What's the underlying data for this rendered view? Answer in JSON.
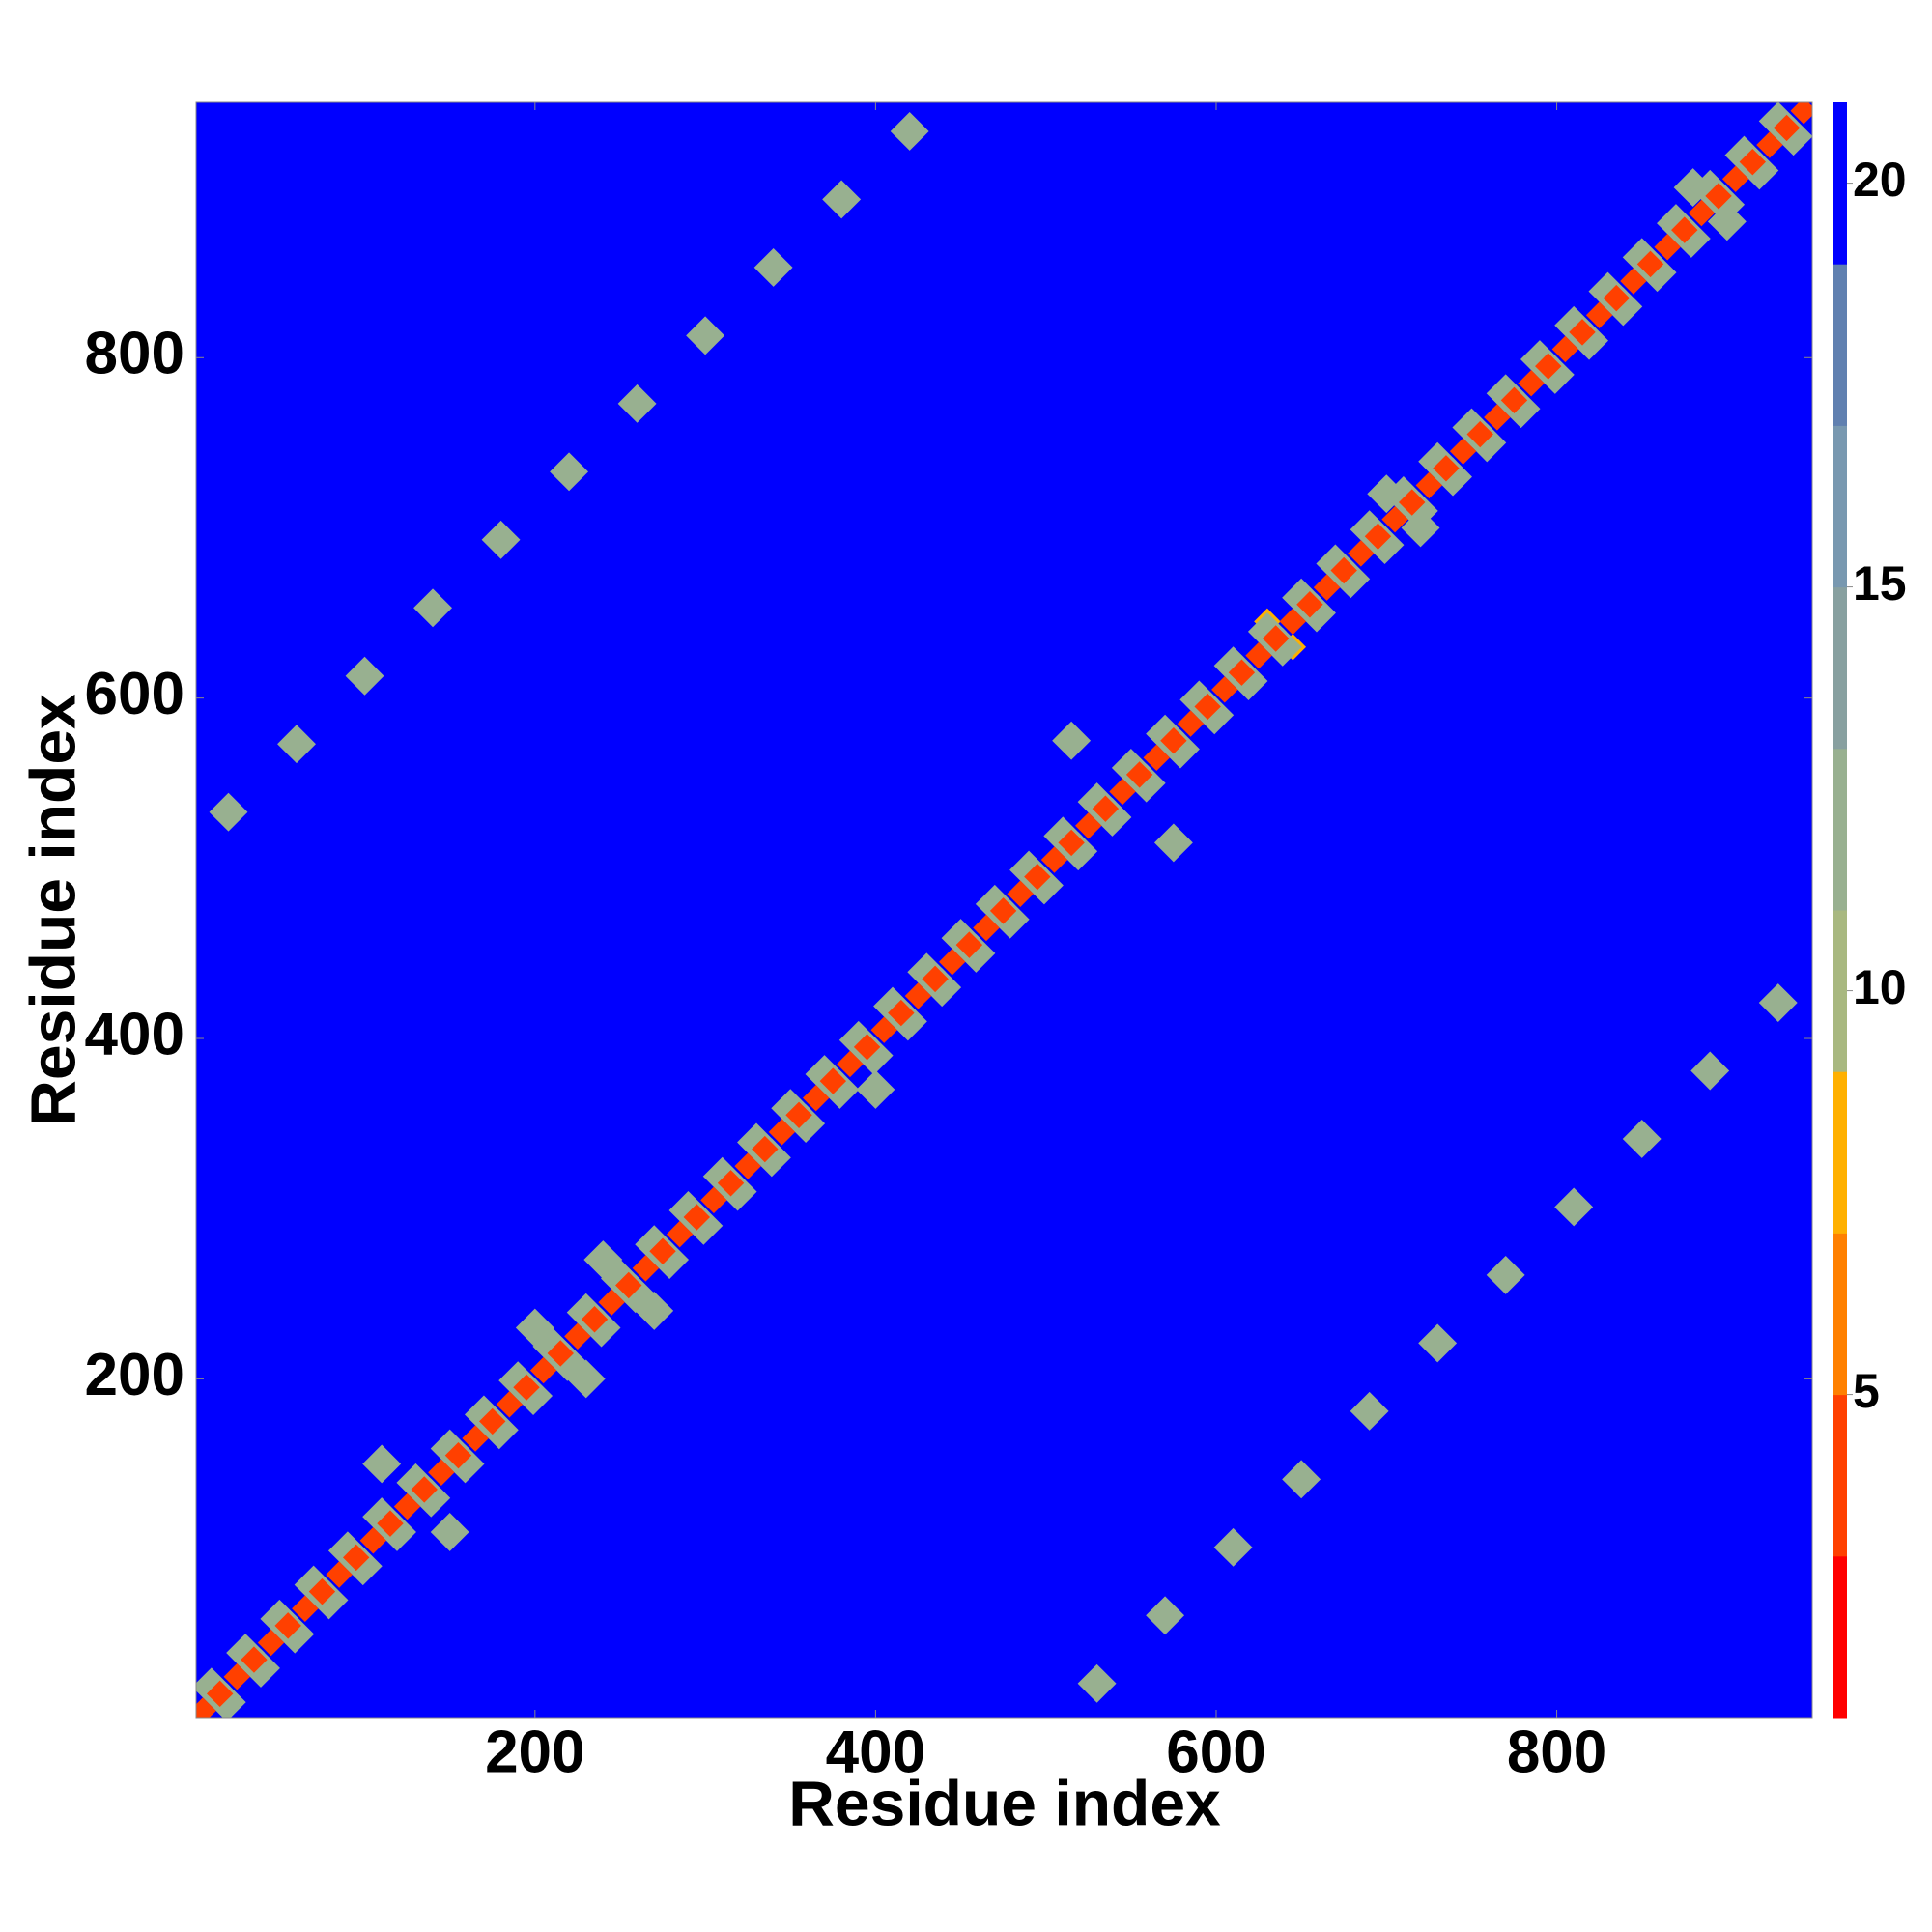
{
  "chart_data": {
    "type": "heatmap",
    "x_label": "Residue index",
    "y_label": "Residue index",
    "xlim": [
      1,
      950
    ],
    "ylim": [
      1,
      950
    ],
    "xticks": [
      200,
      400,
      600,
      800
    ],
    "yticks": [
      200,
      400,
      600,
      800
    ],
    "clim": [
      1,
      21
    ],
    "cticks": [
      5,
      10,
      15,
      20
    ],
    "colors": [
      "#ff0000",
      "#ff4000",
      "#ff8000",
      "#ffb000",
      "#a8b880",
      "#98b090",
      "#88a0a0",
      "#7898b0",
      "#6080b0",
      "#0000ff"
    ],
    "background": 21,
    "x": [
      20,
      60,
      100,
      140,
      180,
      220,
      260,
      300,
      340,
      380,
      420,
      530,
      570,
      610,
      650,
      690,
      730,
      770,
      810,
      850,
      890,
      930,
      240,
      270,
      200,
      230,
      700,
      720,
      515,
      575,
      110,
      150,
      630,
      645,
      880,
      900,
      400,
      10,
      30,
      50,
      70,
      90,
      110,
      130,
      150,
      170,
      190,
      210,
      230,
      250,
      270,
      290,
      310,
      330,
      350,
      370,
      390,
      410,
      430,
      450,
      470,
      490,
      510,
      530,
      550,
      570,
      590,
      610,
      630,
      650,
      670,
      690,
      710,
      730,
      750,
      770,
      790,
      810,
      830,
      850,
      870,
      890,
      910,
      930,
      19,
      39,
      59,
      79,
      99,
      119,
      139,
      159,
      179,
      199,
      219,
      239,
      259,
      279,
      299,
      319,
      339,
      359,
      379,
      399,
      419,
      439,
      459,
      479,
      499,
      519,
      539,
      559,
      579,
      599,
      619,
      639,
      659,
      679,
      699,
      719,
      739,
      759,
      779,
      799,
      819,
      839,
      859,
      879,
      899,
      919,
      939,
      5,
      15,
      25,
      35,
      45,
      55,
      65,
      75,
      85,
      95,
      105,
      115,
      125,
      135,
      145,
      155,
      165,
      175,
      185,
      195,
      205,
      215,
      225,
      235,
      245,
      255,
      265,
      275,
      285,
      295,
      305,
      315,
      325,
      335,
      345,
      355,
      365,
      375,
      385,
      395,
      405,
      415,
      425,
      435,
      445,
      455,
      465,
      475,
      485,
      495,
      505,
      515,
      525,
      535,
      545,
      555,
      565,
      575,
      585,
      595,
      605,
      615,
      625,
      635,
      645,
      655,
      665,
      675,
      685,
      695,
      705,
      715,
      725,
      735,
      745,
      755,
      765,
      775,
      785,
      795,
      805,
      815,
      825,
      835,
      845,
      855,
      865,
      875,
      885,
      895,
      905,
      915,
      925,
      935,
      945
    ],
    "y": [
      533,
      573,
      613,
      653,
      693,
      733,
      773,
      813,
      853,
      893,
      933,
      21,
      61,
      101,
      141,
      181,
      221,
      261,
      301,
      341,
      381,
      421,
      270,
      240,
      230,
      200,
      720,
      700,
      575,
      515,
      150,
      110,
      645,
      630,
      900,
      880,
      370,
      19,
      39,
      59,
      79,
      99,
      119,
      139,
      159,
      179,
      199,
      219,
      239,
      259,
      279,
      299,
      319,
      339,
      359,
      379,
      399,
      419,
      439,
      459,
      479,
      499,
      519,
      539,
      559,
      579,
      599,
      619,
      639,
      659,
      679,
      699,
      719,
      739,
      759,
      779,
      799,
      819,
      839,
      859,
      879,
      899,
      919,
      939,
      10,
      30,
      50,
      70,
      90,
      110,
      130,
      150,
      170,
      190,
      210,
      230,
      250,
      270,
      290,
      310,
      330,
      350,
      370,
      390,
      410,
      430,
      450,
      470,
      490,
      510,
      530,
      550,
      570,
      590,
      610,
      630,
      650,
      670,
      690,
      710,
      730,
      750,
      770,
      790,
      810,
      830,
      850,
      870,
      890,
      910,
      930,
      5,
      15,
      25,
      35,
      45,
      55,
      65,
      75,
      85,
      95,
      105,
      115,
      125,
      135,
      145,
      155,
      165,
      175,
      185,
      195,
      205,
      215,
      225,
      235,
      245,
      255,
      265,
      275,
      285,
      295,
      305,
      315,
      325,
      335,
      345,
      355,
      365,
      375,
      385,
      395,
      405,
      415,
      425,
      435,
      445,
      455,
      465,
      475,
      485,
      495,
      505,
      515,
      525,
      535,
      545,
      555,
      565,
      575,
      585,
      595,
      605,
      615,
      625,
      635,
      645,
      655,
      665,
      675,
      685,
      695,
      705,
      715,
      725,
      735,
      745,
      755,
      765,
      775,
      785,
      795,
      805,
      815,
      825,
      835,
      845,
      855,
      865,
      875,
      885,
      895,
      905,
      915,
      925,
      935,
      945
    ],
    "values": [
      12,
      12,
      12,
      12,
      12,
      12,
      12,
      12,
      12,
      12,
      12,
      12,
      12,
      12,
      12,
      12,
      12,
      12,
      12,
      12,
      12,
      12,
      12,
      12,
      12,
      12,
      12,
      12,
      12,
      12,
      12,
      12,
      7,
      7,
      12,
      12,
      12,
      12,
      12,
      12,
      12,
      12,
      12,
      12,
      12,
      12,
      12,
      12,
      12,
      12,
      12,
      12,
      12,
      12,
      12,
      12,
      12,
      12,
      12,
      12,
      12,
      12,
      12,
      12,
      12,
      12,
      12,
      12,
      12,
      12,
      12,
      12,
      12,
      12,
      12,
      12,
      12,
      12,
      12,
      12,
      12,
      12,
      12,
      12,
      12,
      12,
      12,
      12,
      12,
      12,
      12,
      12,
      12,
      12,
      12,
      12,
      12,
      12,
      12,
      12,
      12,
      12,
      12,
      12,
      12,
      12,
      12,
      12,
      12,
      12,
      12,
      12,
      12,
      12,
      12,
      12,
      12,
      12,
      12,
      12,
      12,
      12,
      12,
      12,
      12,
      12,
      12,
      12,
      12,
      12,
      12,
      3,
      3,
      3,
      3,
      3,
      3,
      3,
      3,
      3,
      3,
      3,
      3,
      3,
      3,
      3,
      3,
      3,
      3,
      3,
      3,
      3,
      3,
      3,
      3,
      3,
      3,
      3,
      3,
      3,
      3,
      3,
      3,
      3,
      3,
      3,
      3,
      3,
      3,
      3,
      3,
      3,
      3,
      3,
      3,
      3,
      3,
      3,
      3,
      3,
      3,
      3,
      3,
      3,
      3,
      3,
      3,
      3,
      3,
      3,
      3,
      3,
      3,
      3,
      3,
      3,
      3,
      3,
      3,
      3,
      3,
      3,
      3,
      3,
      3,
      3,
      3,
      3,
      3,
      3,
      3,
      3,
      3,
      3,
      3,
      3,
      3,
      3,
      3,
      3,
      3,
      3,
      3,
      3,
      3,
      3
    ]
  }
}
